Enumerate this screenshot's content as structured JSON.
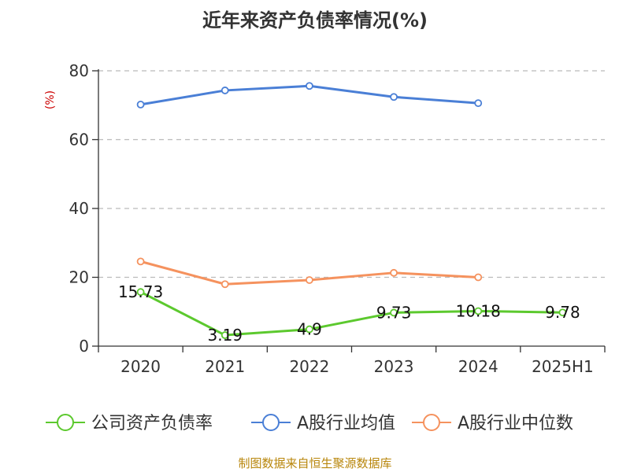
{
  "chart_data": {
    "type": "line",
    "title": "近年来资产负债率情况(%)",
    "ylabel": "(%)",
    "xlabel": "",
    "categories": [
      "2020",
      "2021",
      "2022",
      "2023",
      "2024",
      "2025H1"
    ],
    "ylim": [
      0,
      80
    ],
    "yticks": [
      0,
      20,
      40,
      60,
      80
    ],
    "grid": true,
    "legend_position": "bottom",
    "series": [
      {
        "name": "公司资产负债率",
        "color": "#5cc92e",
        "values": [
          15.73,
          3.19,
          4.9,
          9.73,
          10.18,
          9.78
        ],
        "labels": [
          "15.73",
          "3.19",
          "4.9",
          "9.73",
          "10.18",
          "9.78"
        ]
      },
      {
        "name": "A股行业均值",
        "color": "#4a7fd6",
        "values": [
          70.2,
          74.3,
          75.6,
          72.4,
          70.6,
          null
        ]
      },
      {
        "name": "A股行业中位数",
        "color": "#f5925e",
        "values": [
          24.6,
          18.0,
          19.2,
          21.3,
          20.0,
          null
        ]
      }
    ]
  },
  "footer": "制图数据来自恒生聚源数据库"
}
